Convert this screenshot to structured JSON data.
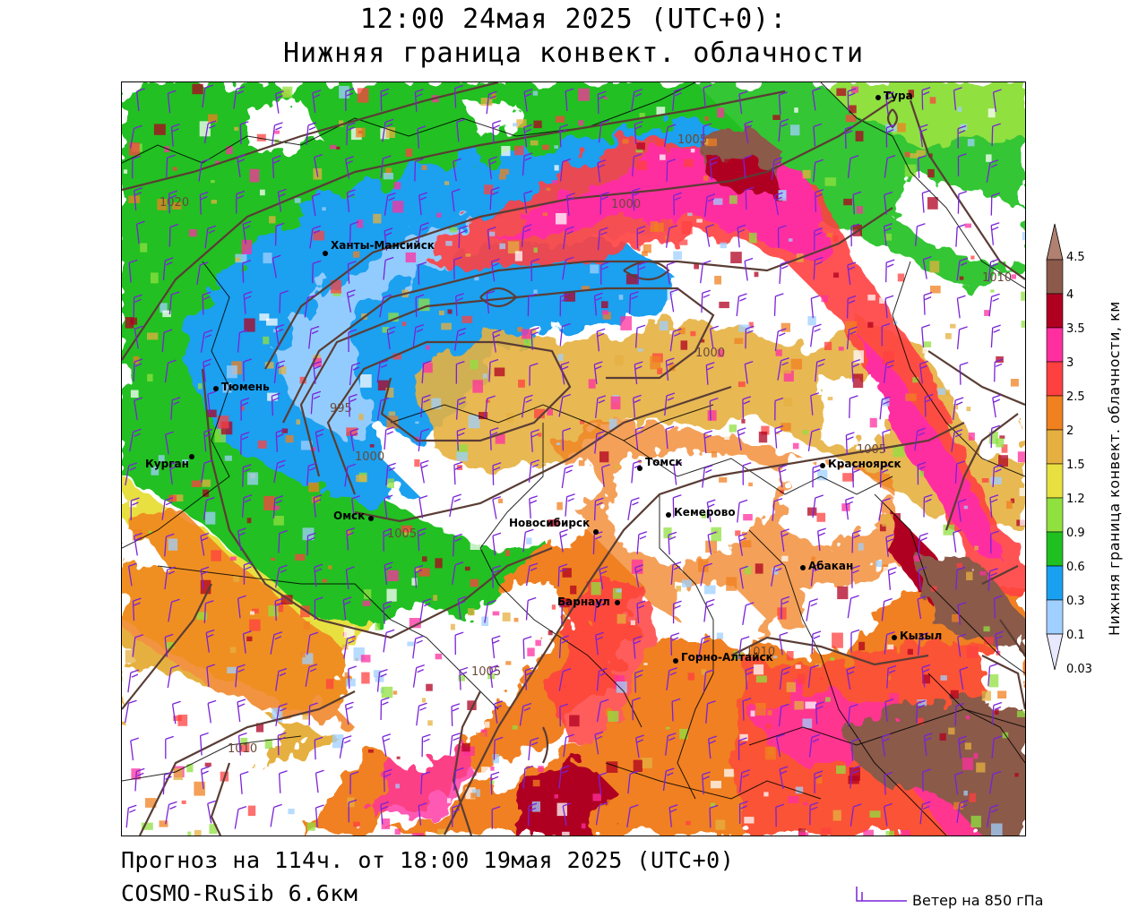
{
  "header": {
    "title_line1": "12:00 24мая 2025 (UTC+0):",
    "title_line2": "Нижняя граница конвект. облачности"
  },
  "footer": {
    "forecast": "Прогноз на 114ч. от 18:00 19мая 2025 (UTC+0)",
    "model": "COSMO-RuSib 6.6км",
    "wind_legend": "Ветер на 850 гПа"
  },
  "colorbar": {
    "title": "Нижняя граница конвект. облачности, км",
    "levels": [
      {
        "label": "4.5",
        "color": "#b08070"
      },
      {
        "label": "4",
        "color": "#8b5a4a"
      },
      {
        "label": "3.5",
        "color": "#b00020"
      },
      {
        "label": "3",
        "color": "#ff2fa0"
      },
      {
        "label": "2.5",
        "color": "#ff4040"
      },
      {
        "label": "2",
        "color": "#f08020"
      },
      {
        "label": "1.5",
        "color": "#e6b040"
      },
      {
        "label": "1.2",
        "color": "#e8e040"
      },
      {
        "label": "0.9",
        "color": "#90e040"
      },
      {
        "label": "0.6",
        "color": "#20c020"
      },
      {
        "label": "0.3",
        "color": "#1aa0f0"
      },
      {
        "label": "0.1",
        "color": "#a0d0ff"
      },
      {
        "label": "0.03",
        "color": "#e8e8ff"
      }
    ]
  },
  "map": {
    "cities": [
      {
        "name": "Тура"
      },
      {
        "name": "Ханты-Мансийск"
      },
      {
        "name": "Тюмень"
      },
      {
        "name": "Курган"
      },
      {
        "name": "Омск"
      },
      {
        "name": "Новосибирск"
      },
      {
        "name": "Томск"
      },
      {
        "name": "Кемерово"
      },
      {
        "name": "Красноярск"
      },
      {
        "name": "Абакан"
      },
      {
        "name": "Барнаул"
      },
      {
        "name": "Горно-Алтайск"
      },
      {
        "name": "Кызыл"
      }
    ],
    "isobar_labels": [
      "1005",
      "1020",
      "1000",
      "1010",
      "1000",
      "995",
      "1000",
      "1005",
      "1005",
      "1010",
      "1005",
      "1010"
    ]
  }
}
